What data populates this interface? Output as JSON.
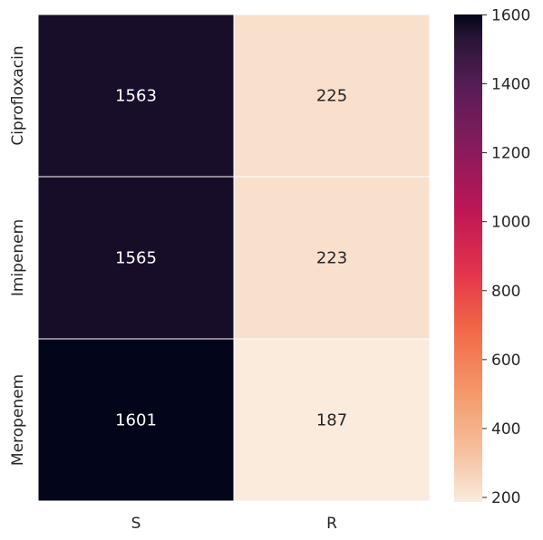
{
  "chart_data": {
    "type": "heatmap",
    "title": "",
    "xlabel": "",
    "ylabel": "",
    "x_categories": [
      "S",
      "R"
    ],
    "y_categories": [
      "Ciprofloxacin",
      "Imipenem",
      "Meropenem"
    ],
    "values": [
      [
        1563,
        225
      ],
      [
        1565,
        223
      ],
      [
        1601,
        187
      ]
    ],
    "colormap": "rocket_r",
    "colorbar": {
      "range": [
        187,
        1601
      ],
      "ticks": [
        200,
        400,
        600,
        800,
        1000,
        1200,
        1400,
        1600
      ]
    },
    "annotations": true,
    "grid": false,
    "cell_separator_color": "#ffffff"
  }
}
